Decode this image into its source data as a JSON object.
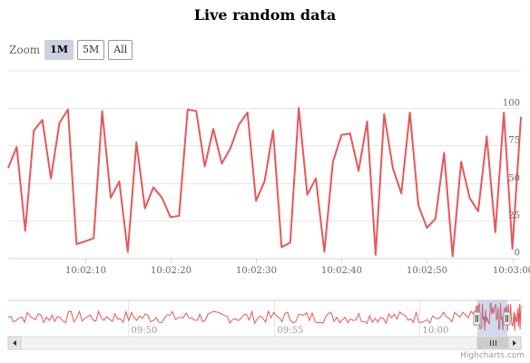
{
  "title": "Live random data",
  "zoom": {
    "label": "Zoom",
    "buttons": [
      "1M",
      "5M",
      "All"
    ],
    "active": 0
  },
  "credits": "Highcharts.com",
  "colors": {
    "series": "#e85758",
    "grid": "#e6e6e6",
    "navigatorMask": "rgba(102,133,194,0.3)"
  },
  "chart_data": {
    "type": "line",
    "title": "Live random data",
    "xlabel": "",
    "ylabel": "",
    "ylim": [
      0,
      100
    ],
    "yticks": [
      0,
      25,
      50,
      75,
      100
    ],
    "grid": true,
    "xticks": [
      "10:02:10",
      "10:02:20",
      "10:02:30",
      "10:02:40",
      "10:02:50",
      "10:03:00"
    ],
    "series": [
      {
        "x_start": "10:02:01",
        "x_step_seconds": 1,
        "values": [
          60,
          74,
          18,
          85,
          92,
          53,
          90,
          99,
          9,
          11,
          13,
          98,
          40,
          51,
          4,
          77,
          33,
          47,
          40,
          27,
          28,
          99,
          98,
          61,
          86,
          63,
          73,
          89,
          97,
          38,
          51,
          85,
          7,
          10,
          100,
          42,
          53,
          4,
          64,
          82,
          83,
          58,
          91,
          2,
          96,
          60,
          43,
          97,
          35,
          20,
          26,
          70,
          1,
          64,
          40,
          31,
          81,
          17,
          97,
          6,
          94
        ]
      }
    ],
    "navigator": {
      "xticks": [
        "09:50",
        "09:55",
        "10:00"
      ],
      "selected_range": [
        "10:02:01",
        "10:03:01"
      ]
    }
  }
}
